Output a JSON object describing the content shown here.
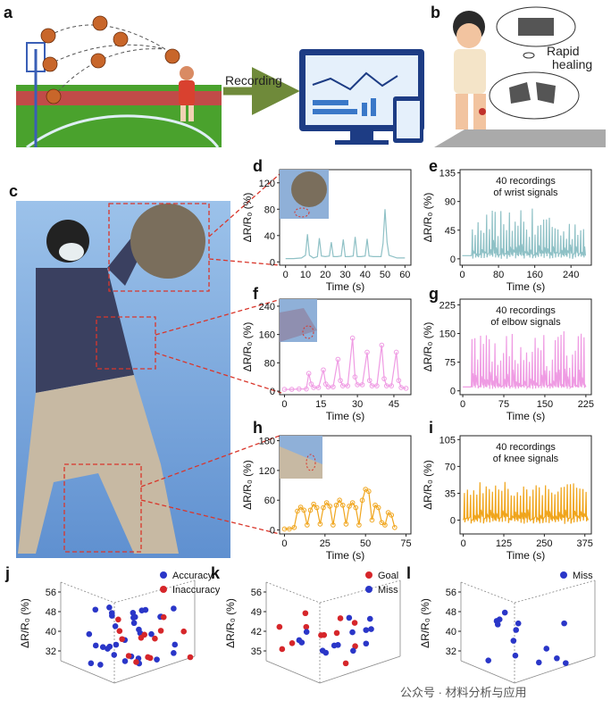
{
  "panel_labels": {
    "a": "a",
    "b": "b",
    "c": "c",
    "d": "d",
    "e": "e",
    "f": "f",
    "g": "g",
    "h": "h",
    "i": "i",
    "j": "j",
    "k": "k",
    "l": "l"
  },
  "texts": {
    "recording": "Recording",
    "rapid": "Rapid",
    "healing": "healing",
    "watermark": "公众号 · 材料分析与应用"
  },
  "colors": {
    "wrist": "#8fc1c6",
    "elbow": "#ef9be3",
    "knee": "#f0a51c",
    "red_dot": "#d6262a",
    "blue_dot": "#2a36c8",
    "dash_red": "#d9362b",
    "ball": "#c8662a",
    "field": "#4aa22d",
    "track": "#c14b48"
  },
  "chart_data": [
    {
      "id": "d",
      "type": "line",
      "title": "",
      "xlabel": "Time (s)",
      "ylabel": "ΔR/R₀ (%)",
      "xlim": [
        -3,
        63
      ],
      "ylim": [
        -5,
        140
      ],
      "xticks": [
        0,
        10,
        20,
        30,
        40,
        50,
        60
      ],
      "yticks": [
        0,
        40,
        80,
        120
      ],
      "series": [
        {
          "x": [
            0,
            4,
            8,
            10,
            11,
            12,
            14,
            16,
            17,
            18,
            20,
            22,
            23,
            24,
            26,
            28,
            29,
            30,
            32,
            34,
            35,
            36,
            38,
            40,
            41,
            42,
            44,
            48,
            49,
            50,
            51,
            52,
            56,
            60
          ],
          "y": [
            5,
            5,
            6,
            10,
            42,
            10,
            6,
            8,
            36,
            9,
            8,
            9,
            30,
            8,
            8,
            9,
            34,
            8,
            8,
            9,
            38,
            8,
            8,
            9,
            35,
            9,
            8,
            8,
            28,
            80,
            30,
            10,
            6,
            6
          ]
        }
      ]
    },
    {
      "id": "e",
      "type": "line",
      "title": "40 recordings of wrist signals",
      "xlabel": "Time (s)",
      "ylabel": "ΔR/R₀ (%)",
      "xlim": [
        -5,
        285
      ],
      "ylim": [
        -10,
        140
      ],
      "xticks": [
        0,
        80,
        160,
        240
      ],
      "yticks": [
        0,
        45,
        90,
        135
      ],
      "series": [
        {
          "x_start": 20,
          "x_end": 272,
          "baseline": 5,
          "peak_min": 30,
          "peak_max": 80
        }
      ]
    },
    {
      "id": "f",
      "type": "line",
      "title": "",
      "xlabel": "Time (s)",
      "ylabel": "ΔR/R₀ (%)",
      "xlim": [
        -2,
        52
      ],
      "ylim": [
        -10,
        260
      ],
      "xticks": [
        0,
        15,
        30,
        45
      ],
      "yticks": [
        0,
        80,
        160,
        240
      ],
      "series": [
        {
          "x": [
            0,
            3,
            6,
            9,
            10,
            11,
            12,
            14,
            16,
            17,
            18,
            20,
            22,
            23,
            24,
            26,
            28,
            29,
            30,
            32,
            34,
            35,
            36,
            38,
            40,
            41,
            42,
            44,
            46,
            47,
            48,
            50
          ],
          "y": [
            5,
            5,
            6,
            6,
            50,
            20,
            10,
            10,
            60,
            20,
            12,
            12,
            90,
            30,
            15,
            15,
            150,
            40,
            18,
            18,
            110,
            30,
            15,
            15,
            130,
            35,
            15,
            15,
            110,
            30,
            10,
            8
          ]
        }
      ]
    },
    {
      "id": "g",
      "type": "line",
      "title": "40 recordings of elbow signals",
      "xlabel": "Time (s)",
      "ylabel": "ΔR/R₀ (%)",
      "xlim": [
        -5,
        235
      ],
      "ylim": [
        -10,
        240
      ],
      "xticks": [
        0,
        75,
        150,
        225
      ],
      "yticks": [
        0,
        75,
        150,
        225
      ],
      "series": [
        {
          "x_start": 15,
          "x_end": 225,
          "baseline": 10,
          "peak_min": 40,
          "peak_max": 160
        }
      ]
    },
    {
      "id": "h",
      "type": "line",
      "title": "",
      "xlabel": "Time (s)",
      "ylabel": "ΔR/R₀ (%)",
      "xlim": [
        -3,
        78
      ],
      "ylim": [
        -8,
        190
      ],
      "xticks": [
        0,
        25,
        50,
        75
      ],
      "yticks": [
        0,
        60,
        120,
        180
      ],
      "series": [
        {
          "x": [
            0,
            3,
            6,
            8,
            10,
            12,
            14,
            16,
            18,
            20,
            22,
            24,
            26,
            28,
            30,
            32,
            34,
            36,
            38,
            40,
            42,
            44,
            46,
            48,
            50,
            52,
            54,
            56,
            58,
            60,
            62,
            64,
            66,
            68
          ],
          "y": [
            2,
            2,
            5,
            38,
            46,
            40,
            10,
            40,
            52,
            45,
            12,
            45,
            55,
            48,
            10,
            50,
            60,
            50,
            12,
            48,
            55,
            45,
            10,
            60,
            82,
            78,
            20,
            50,
            45,
            15,
            10,
            35,
            30,
            5
          ]
        }
      ]
    },
    {
      "id": "i",
      "type": "line",
      "title": "40 recordings of knee signals",
      "xlabel": "Time (s)",
      "ylabel": "ΔR/R₀ (%)",
      "xlim": [
        -10,
        395
      ],
      "ylim": [
        -18,
        110
      ],
      "xticks": [
        0,
        125,
        250,
        375
      ],
      "yticks": [
        0,
        35,
        70,
        105
      ],
      "series": [
        {
          "x_start": 0,
          "x_end": 385,
          "baseline": 0,
          "peak_min": 30,
          "peak_max": 50
        }
      ]
    },
    {
      "id": "j",
      "type": "scatter",
      "ylabel": "ΔR/R₀ (%)",
      "zticks": [
        32,
        40,
        48,
        56
      ],
      "series": [
        {
          "name": "Accuracy",
          "color": "#2a36c8"
        },
        {
          "name": "Inaccuracy",
          "color": "#d6262a"
        }
      ]
    },
    {
      "id": "k",
      "type": "scatter",
      "ylabel": "ΔR/R₀ (%)",
      "zticks": [
        35,
        42,
        49,
        56
      ],
      "series": [
        {
          "name": "Goal",
          "color": "#d6262a"
        },
        {
          "name": "Miss",
          "color": "#2a36c8"
        }
      ]
    },
    {
      "id": "l",
      "type": "scatter",
      "ylabel": "ΔR/R₀ (%)",
      "zticks": [
        32,
        40,
        48,
        56
      ],
      "series": [
        {
          "name": "Miss",
          "color": "#2a36c8"
        }
      ]
    }
  ]
}
